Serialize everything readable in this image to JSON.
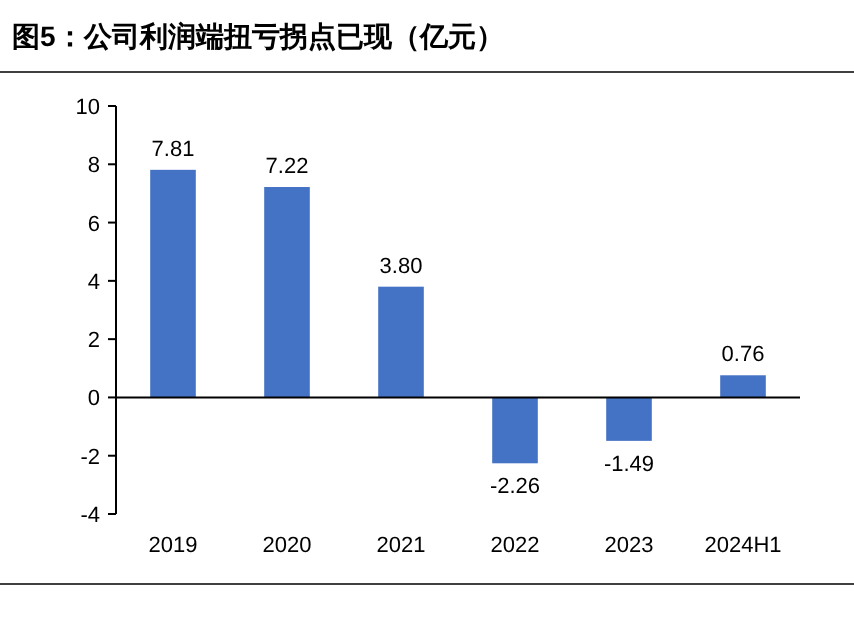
{
  "chart_data": {
    "type": "bar",
    "title": "图5：公司利润端扭亏拐点已现（亿元）",
    "categories": [
      "2019",
      "2020",
      "2021",
      "2022",
      "2023",
      "2024H1"
    ],
    "values": [
      7.81,
      7.22,
      3.8,
      -2.26,
      -1.49,
      0.76
    ],
    "value_labels": [
      "7.81",
      "7.22",
      "3.80",
      "-2.26",
      "-1.49",
      "0.76"
    ],
    "color": "#4472c4",
    "ylim": [
      -4,
      10
    ],
    "yticks": [
      -4,
      -2,
      0,
      2,
      4,
      6,
      8,
      10
    ]
  }
}
